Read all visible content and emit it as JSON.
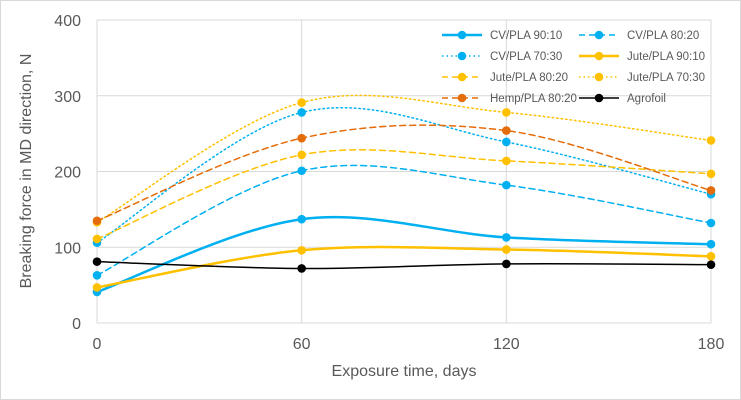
{
  "chart_data": {
    "type": "line",
    "title": "",
    "xlabel": "Exposure time, days",
    "ylabel": "Breaking force in MD direction, N",
    "x": [
      0,
      60,
      120,
      180
    ],
    "xticks": [
      "0",
      "60",
      "120",
      "180"
    ],
    "yticks": [
      "0",
      "100",
      "200",
      "300",
      "400"
    ],
    "xlim": [
      0,
      180
    ],
    "ylim": [
      0,
      400
    ],
    "grid": "vertical and horizontal major gridlines",
    "legend_position": "top-right",
    "series": [
      {
        "name": "CV/PLA 90:10",
        "values": [
          41,
          137,
          113,
          104
        ],
        "color": "#00b0f0",
        "style": "solid",
        "weight": "thick"
      },
      {
        "name": "CV/PLA 80:20",
        "values": [
          63,
          201,
          182,
          132
        ],
        "color": "#00b0f0",
        "style": "dashed",
        "weight": "normal"
      },
      {
        "name": "CV/PLA 70:30",
        "values": [
          106,
          278,
          239,
          170
        ],
        "color": "#00b0f0",
        "style": "dotted",
        "weight": "normal"
      },
      {
        "name": "Jute/PLA 90:10",
        "values": [
          47,
          96,
          97,
          88
        ],
        "color": "#ffc000",
        "style": "solid",
        "weight": "thick"
      },
      {
        "name": "Jute/PLA 80:20",
        "values": [
          111,
          222,
          214,
          197
        ],
        "color": "#ffc000",
        "style": "dashed",
        "weight": "normal"
      },
      {
        "name": "Jute/PLA 70:30",
        "values": [
          133,
          291,
          278,
          241
        ],
        "color": "#ffc000",
        "style": "dotted",
        "weight": "normal"
      },
      {
        "name": "Hemp/PLA 80:20",
        "values": [
          135,
          244,
          254,
          175
        ],
        "color": "#e46c0a",
        "style": "dashed",
        "weight": "normal"
      },
      {
        "name": "Agrofoil",
        "values": [
          81,
          72,
          78,
          77
        ],
        "color": "#000000",
        "style": "solid",
        "weight": "normal"
      }
    ]
  }
}
